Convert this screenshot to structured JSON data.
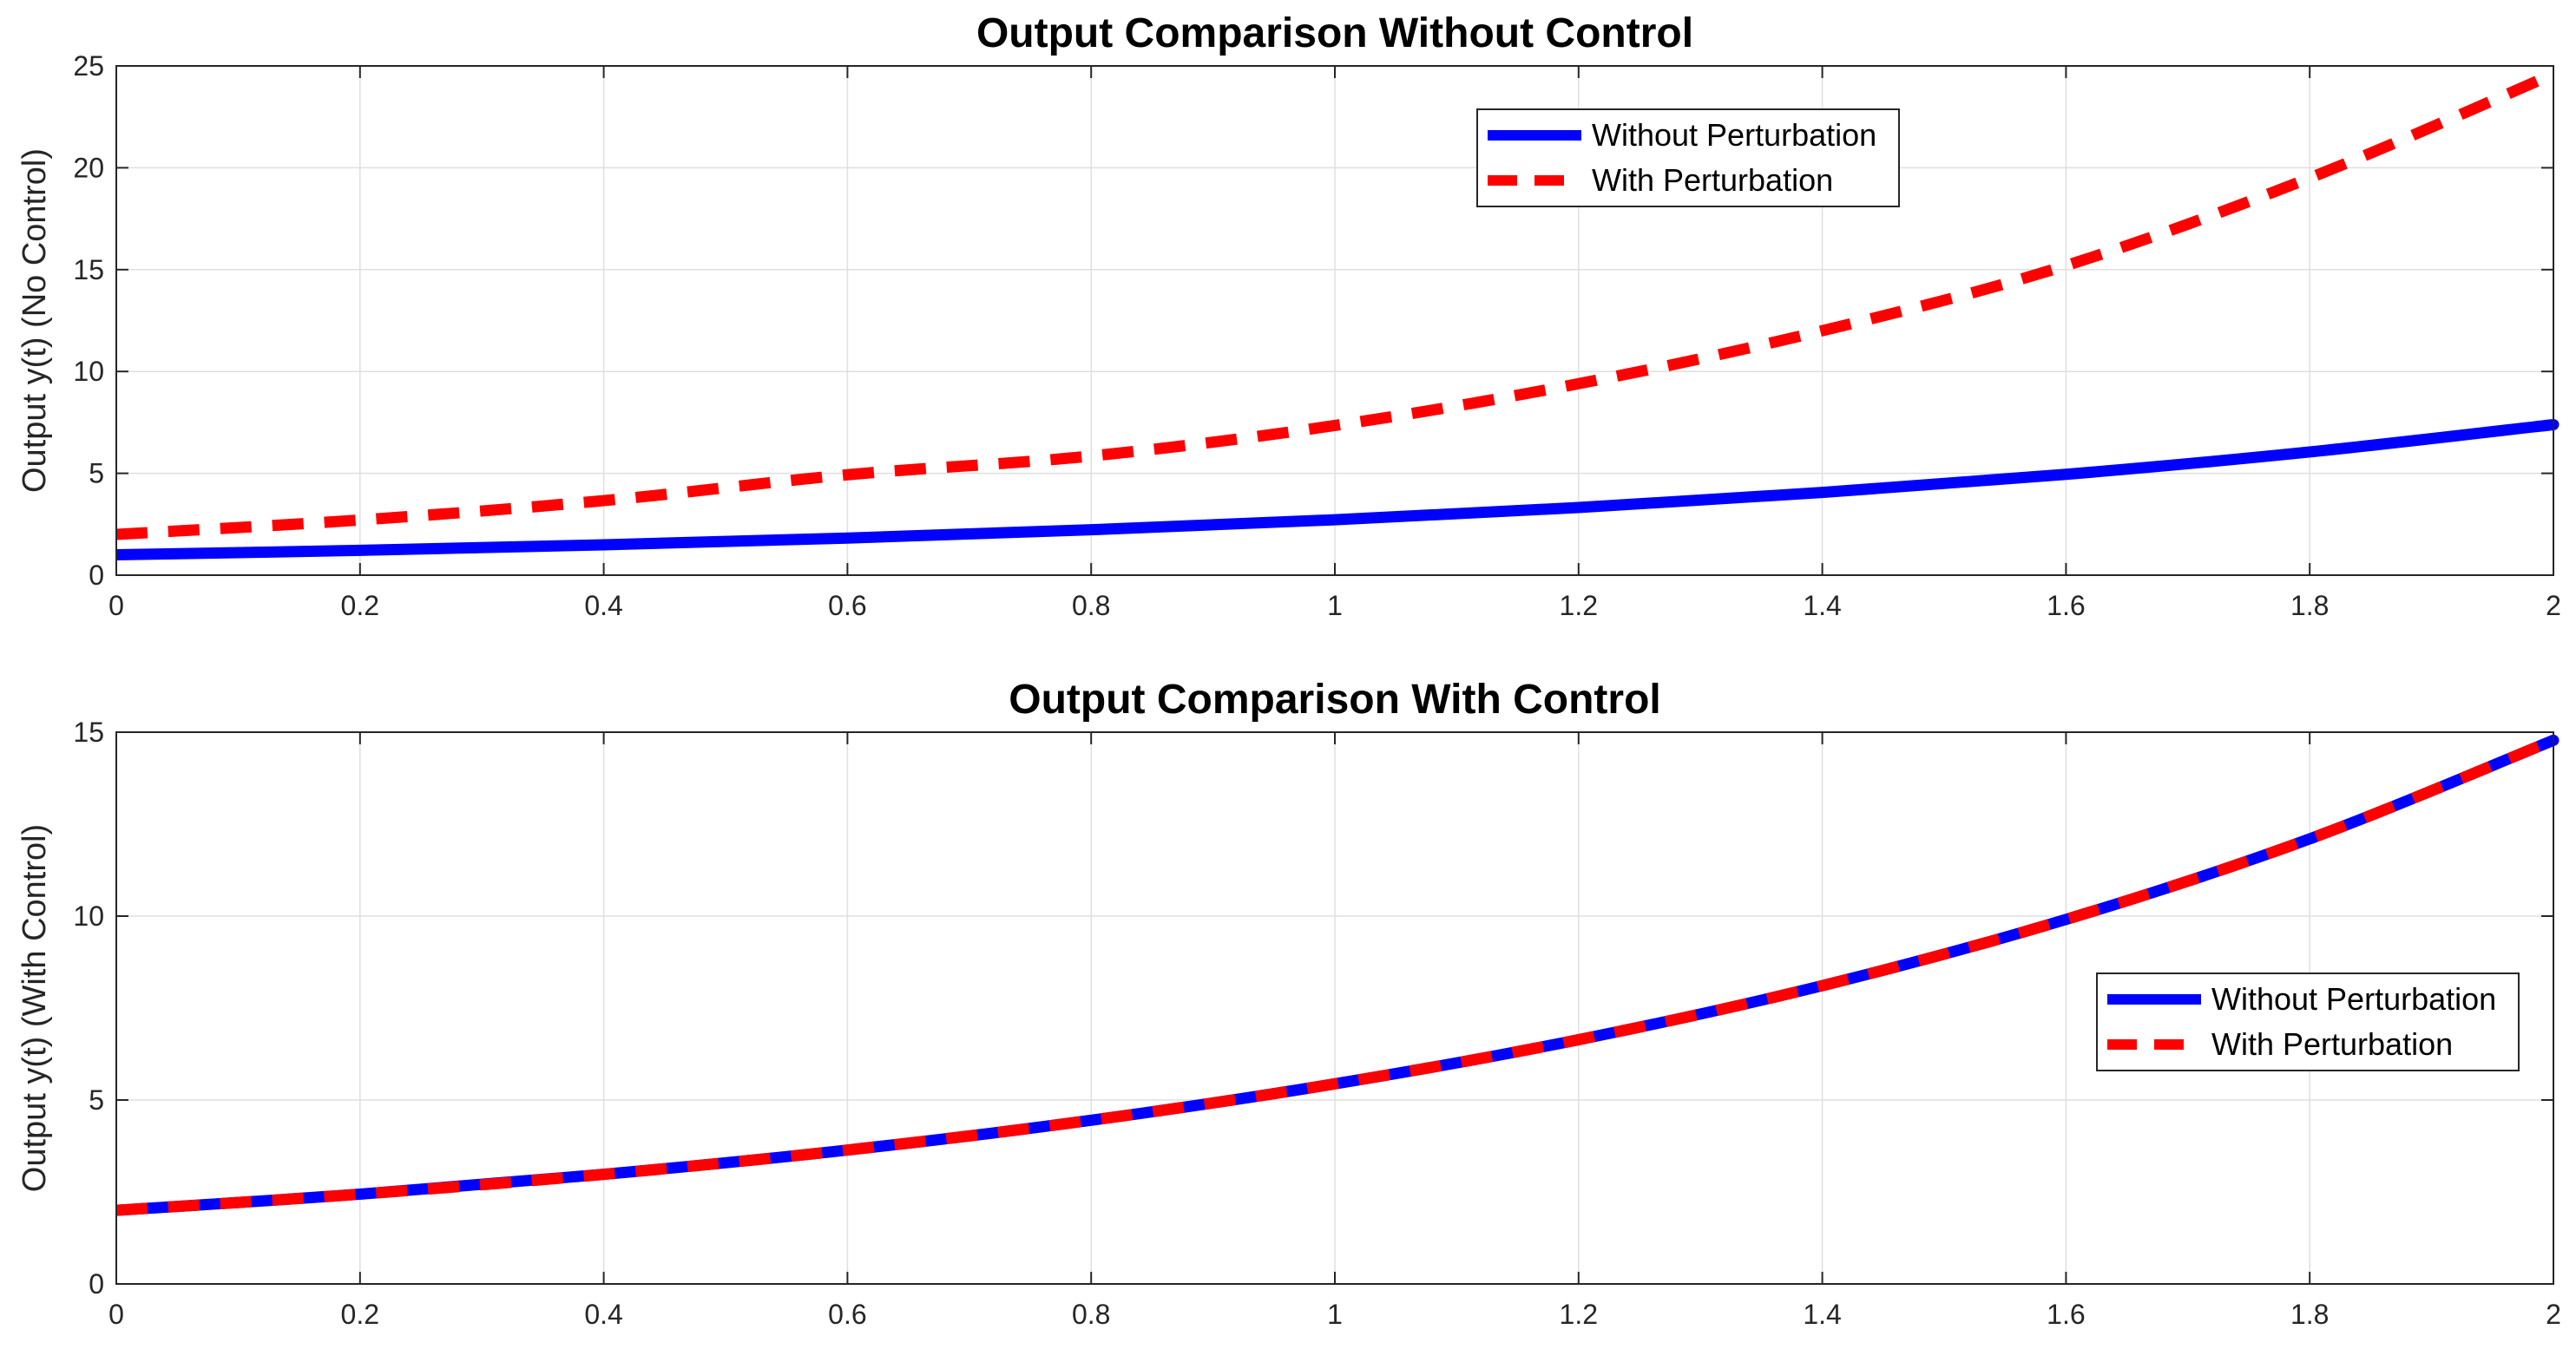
{
  "colors": {
    "without_perturbation": "#0000ff",
    "with_perturbation": "#ff0000",
    "grid": "#dfdfdf",
    "axes": "#262626"
  },
  "chart_data": [
    {
      "type": "line",
      "title": "Output Comparison Without Control",
      "xlabel": "",
      "ylabel": "Output y(t) (No Control)",
      "xlim": [
        0,
        2
      ],
      "ylim": [
        0,
        25
      ],
      "xticks": [
        0,
        0.2,
        0.4,
        0.6,
        0.8,
        1,
        1.2,
        1.4,
        1.6,
        1.8,
        2
      ],
      "xtick_labels": [
        "0",
        "0.2",
        "0.4",
        "0.6",
        "0.8",
        "1",
        "1.2",
        "1.4",
        "1.6",
        "1.8",
        "2"
      ],
      "yticks": [
        0,
        5,
        10,
        15,
        20,
        25
      ],
      "ytick_labels": [
        "0",
        "5",
        "10",
        "15",
        "20",
        "25"
      ],
      "grid": true,
      "legend_position": "top-right",
      "x": [
        0,
        0.2,
        0.4,
        0.6,
        0.8,
        1,
        1.2,
        1.4,
        1.6,
        1.8,
        2
      ],
      "series": [
        {
          "name": "Without Perturbation",
          "style": "solid",
          "values": [
            1,
            1.22,
            1.49,
            1.82,
            2.23,
            2.72,
            3.32,
            4.06,
            4.95,
            6.05,
            7.39
          ]
        },
        {
          "name": "With Perturbation",
          "style": "dashed",
          "values": [
            2,
            2.71,
            3.66,
            4.93,
            5.85,
            7.35,
            9.4,
            12.0,
            15.2,
            19.5,
            24.6
          ]
        }
      ]
    },
    {
      "type": "line",
      "title": "Output Comparison With Control",
      "xlabel": "",
      "ylabel": "Output y(t) (With Control)",
      "xlim": [
        0,
        2
      ],
      "ylim": [
        0,
        15
      ],
      "xticks": [
        0,
        0.2,
        0.4,
        0.6,
        0.8,
        1,
        1.2,
        1.4,
        1.6,
        1.8,
        2
      ],
      "xtick_labels": [
        "0",
        "0.2",
        "0.4",
        "0.6",
        "0.8",
        "1",
        "1.2",
        "1.4",
        "1.6",
        "1.8",
        "2"
      ],
      "yticks": [
        0,
        5,
        10,
        15
      ],
      "ytick_labels": [
        "0",
        "5",
        "10",
        "15"
      ],
      "grid": true,
      "legend_position": "right",
      "x": [
        0,
        0.2,
        0.4,
        0.6,
        0.8,
        1,
        1.2,
        1.4,
        1.6,
        1.8,
        2
      ],
      "series": [
        {
          "name": "Without Perturbation",
          "style": "solid",
          "values": [
            2,
            2.44,
            2.98,
            3.64,
            4.45,
            5.44,
            6.64,
            8.11,
            9.91,
            12.1,
            14.78
          ]
        },
        {
          "name": "With Perturbation",
          "style": "dashed",
          "values": [
            2,
            2.44,
            2.98,
            3.64,
            4.45,
            5.44,
            6.64,
            8.11,
            9.91,
            12.1,
            14.78
          ]
        }
      ]
    }
  ]
}
